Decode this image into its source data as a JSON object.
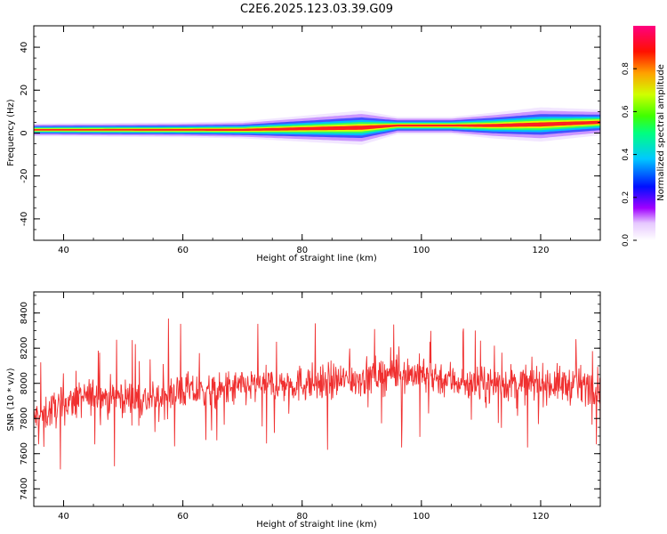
{
  "title": "C2E6.2025.123.03.39.G09",
  "chart_data": [
    {
      "type": "heatmap",
      "xlabel": "Height of straight line (km)",
      "ylabel": "Frequency (Hz)",
      "xlim": [
        35,
        130
      ],
      "ylim": [
        -50,
        50
      ],
      "xticks": [
        40,
        60,
        80,
        100,
        120
      ],
      "yticks": [
        -40,
        -20,
        0,
        20,
        40
      ],
      "colorbar": {
        "label": "Normalized spectral amplitude",
        "range": [
          0,
          1
        ],
        "ticks": [
          "0.0",
          "0.2",
          "0.4",
          "0.6",
          "0.8"
        ],
        "colormap": "rainbow"
      },
      "ridge": [
        {
          "x": 35,
          "center": 1.5,
          "width": 3
        },
        {
          "x": 60,
          "center": 1.5,
          "width": 3.5
        },
        {
          "x": 70,
          "center": 1.5,
          "width": 4
        },
        {
          "x": 80,
          "center": 2,
          "width": 6
        },
        {
          "x": 90,
          "center": 2.5,
          "width": 8
        },
        {
          "x": 96,
          "center": 3.5,
          "width": 4
        },
        {
          "x": 105,
          "center": 3.5,
          "width": 4
        },
        {
          "x": 112,
          "center": 3.5,
          "width": 6
        },
        {
          "x": 120,
          "center": 4,
          "width": 8
        },
        {
          "x": 130,
          "center": 5,
          "width": 6
        }
      ]
    },
    {
      "type": "line",
      "xlabel": "Height of straight line (km)",
      "ylabel": "SNR (10 * v/v)",
      "xlim": [
        35,
        130
      ],
      "ylim": [
        7300,
        8520
      ],
      "xticks": [
        40,
        60,
        80,
        100,
        120
      ],
      "yticks": [
        7400,
        7600,
        7800,
        8000,
        8200,
        8400
      ],
      "series_color": "#f03030",
      "series": [
        {
          "x": [
            35,
            40,
            45,
            50,
            55,
            60,
            65,
            70,
            75,
            80,
            85,
            90,
            95,
            100,
            105,
            110,
            115,
            120,
            125,
            130
          ],
          "values": [
            7800,
            7880,
            7930,
            7920,
            7900,
            7960,
            7940,
            7980,
            7990,
            8000,
            8010,
            8030,
            8060,
            8050,
            8020,
            7990,
            8000,
            8000,
            7990,
            7990
          ]
        }
      ]
    }
  ]
}
